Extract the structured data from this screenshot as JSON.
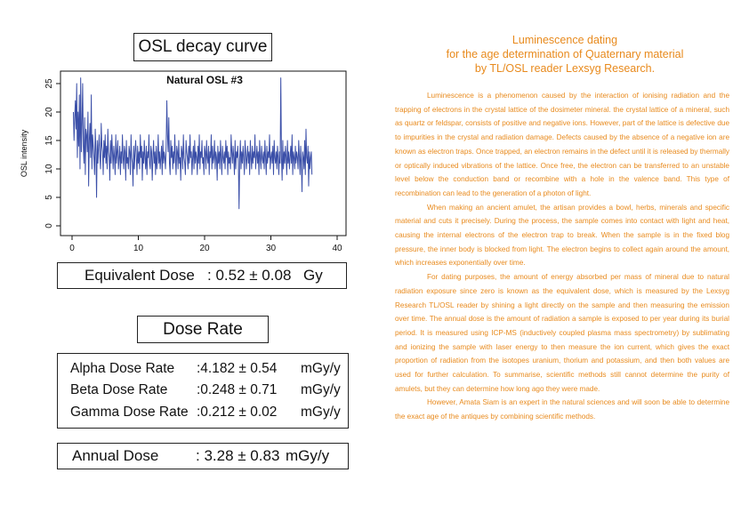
{
  "osl_box": {
    "title": "OSL decay curve"
  },
  "chart_data": {
    "type": "line",
    "title": "Natural OSL #3",
    "xlabel": "",
    "ylabel": "OSL intensity",
    "xlim": [
      0,
      40
    ],
    "ylim": [
      0,
      27
    ],
    "x_ticks": [
      0,
      10,
      20,
      30,
      40
    ],
    "y_ticks": [
      0,
      5,
      10,
      15,
      20,
      25
    ],
    "grid": false,
    "legend": "none",
    "color": "#3b4fa8",
    "series": [
      {
        "x_start": 0.2,
        "x_step": 0.1,
        "values": [
          20,
          15,
          19,
          22,
          17,
          25,
          12,
          20,
          14,
          23,
          10,
          26,
          13,
          18,
          25,
          14,
          11,
          19,
          9,
          17,
          16,
          13,
          20,
          7,
          15,
          18,
          12,
          23,
          10,
          16,
          14,
          12,
          9,
          17,
          13,
          5,
          15,
          11,
          14,
          16,
          12,
          10,
          18,
          14,
          13,
          9,
          15,
          12,
          16,
          11,
          14,
          10,
          17,
          13,
          12,
          8,
          15,
          11,
          16,
          13,
          10,
          14,
          12,
          9,
          16,
          11,
          13,
          15,
          10,
          12,
          14,
          9,
          13,
          11,
          16,
          12,
          10,
          14,
          13,
          8,
          15,
          11,
          12,
          10,
          14,
          13,
          9,
          16,
          12,
          11,
          7,
          14,
          10,
          13,
          15,
          12,
          9,
          14,
          11,
          13,
          10,
          16,
          12,
          14,
          8,
          13,
          11,
          15,
          12,
          10,
          14,
          9,
          13,
          12,
          16,
          11,
          10,
          14,
          13,
          8,
          12,
          15,
          11,
          13,
          9,
          14,
          10,
          12,
          16,
          11,
          13,
          10,
          12,
          14,
          9,
          15,
          11,
          13,
          12,
          10,
          14,
          22,
          16,
          13,
          19,
          11,
          9,
          15,
          12,
          14,
          10,
          13,
          11,
          16,
          12,
          9,
          14,
          13,
          10,
          15,
          11,
          12,
          8,
          14,
          13,
          10,
          16,
          12,
          11,
          9,
          15,
          13,
          12,
          10,
          14,
          11,
          16,
          12,
          13,
          9,
          12,
          14,
          10,
          15,
          11,
          13,
          12,
          9,
          14,
          11,
          16,
          10,
          13,
          12,
          15,
          11,
          12,
          9,
          14,
          13,
          10,
          15,
          12,
          11,
          14,
          9,
          13,
          12,
          16,
          10,
          14,
          11,
          12,
          15,
          10,
          13,
          12,
          8,
          14,
          11,
          13,
          10,
          15,
          12,
          9,
          14,
          12,
          11,
          13,
          10,
          15,
          12,
          14,
          9,
          13,
          11,
          12,
          10,
          16,
          13,
          11,
          14,
          12,
          9,
          15,
          10,
          13,
          12,
          14,
          11,
          3,
          12,
          15,
          10,
          13,
          11,
          14,
          12,
          9,
          15,
          13,
          10,
          12,
          14,
          11,
          13,
          9,
          15,
          12,
          10,
          14,
          11,
          13,
          12,
          16,
          10,
          12,
          14,
          11,
          13,
          9,
          15,
          12,
          10,
          14,
          12,
          11,
          13,
          10,
          15,
          12,
          9,
          14,
          11,
          13,
          12,
          16,
          10,
          12,
          13,
          11,
          14,
          9,
          15,
          12,
          11,
          13,
          10,
          14,
          12,
          9,
          13,
          11,
          26,
          12,
          8,
          15,
          10,
          13,
          11,
          14,
          12,
          9,
          15,
          11,
          13,
          10,
          12,
          14,
          11,
          16,
          9,
          13,
          12,
          10,
          14,
          11,
          13,
          12,
          10,
          15,
          12,
          9,
          14,
          11,
          6,
          13,
          12,
          10,
          15,
          9,
          17,
          12,
          11,
          14,
          7,
          13,
          10,
          12,
          13,
          9
        ]
      }
    ]
  },
  "equivalent_dose": {
    "label": "Equivalent Dose",
    "value": ": 0.52 ± 0.08",
    "unit": "Gy"
  },
  "dose_rate_box": {
    "title": "Dose Rate"
  },
  "dose_rates": [
    {
      "label": "Alpha Dose Rate",
      "value": ":4.182 ± 0.54",
      "unit": "mGy/y"
    },
    {
      "label": "Beta Dose Rate",
      "value": ":0.248 ± 0.71",
      "unit": "mGy/y"
    },
    {
      "label": "Gamma Dose Rate",
      "value": ":0.212 ± 0.02",
      "unit": "mGy/y"
    }
  ],
  "annual_dose": {
    "label": "Annual Dose",
    "value": ": 3.28 ± 0.83",
    "unit": "mGy/y"
  },
  "article": {
    "title_lines": [
      "Luminescence dating",
      "for the age determination of Quaternary material",
      "by TL/OSL reader Lexsyg Research."
    ],
    "paragraphs": [
      "Luminescence is a phenomenon caused by the interaction of ionising radiation and the trapping of electrons in the crystal lattice of the dosimeter mineral. the crystal lattice of a mineral, such as quartz or feldspar, consists of positive and negative ions. However, part of the lattice is defective due to impurities in the crystal and radiation damage. Defects caused by the absence of a negative ion are known as electron traps. Once trapped, an electron remains in the defect until it is released by thermally or optically induced vibrations of the lattice. Once free, the electron can be transferred to an unstable level below the conduction band or recombine with a hole in the valence band. This type of recombination can lead to the generation of a photon of light.",
      "When making an ancient amulet, the artisan provides a bowl, herbs, minerals and specific material and cuts it precisely. During the process, the sample comes into contact with light and heat, causing the internal electrons of the electron trap to break. When the sample is in the fixed blog pressure, the inner body is blocked from light. The electron begins to collect again around the amount, which increases exponentially over time.",
      "For dating purposes, the amount of energy absorbed per mass of mineral due to natural radiation exposure since zero is known as the equivalent dose, which is measured by the Lexsyg Research TL/OSL reader by shining a light directly on the sample and then measuring the emission over time. The annual dose is the amount of radiation a sample is exposed to per year during its burial period. It is measured using ICP-MS (inductively coupled plasma mass spectrometry) by sublimating and ionizing the sample with laser energy to then measure the ion current, which gives the exact proportion of radiation from the isotopes uranium, thorium and potassium, and then both values are used for further calculation. To summarise, scientific methods still cannot determine the purity of amulets, but they can determine how long ago they were made.",
      "However, Amata Siam is an expert in the natural sciences and will soon be able to determine the exact age of the antiques by combining scientific methods."
    ]
  }
}
